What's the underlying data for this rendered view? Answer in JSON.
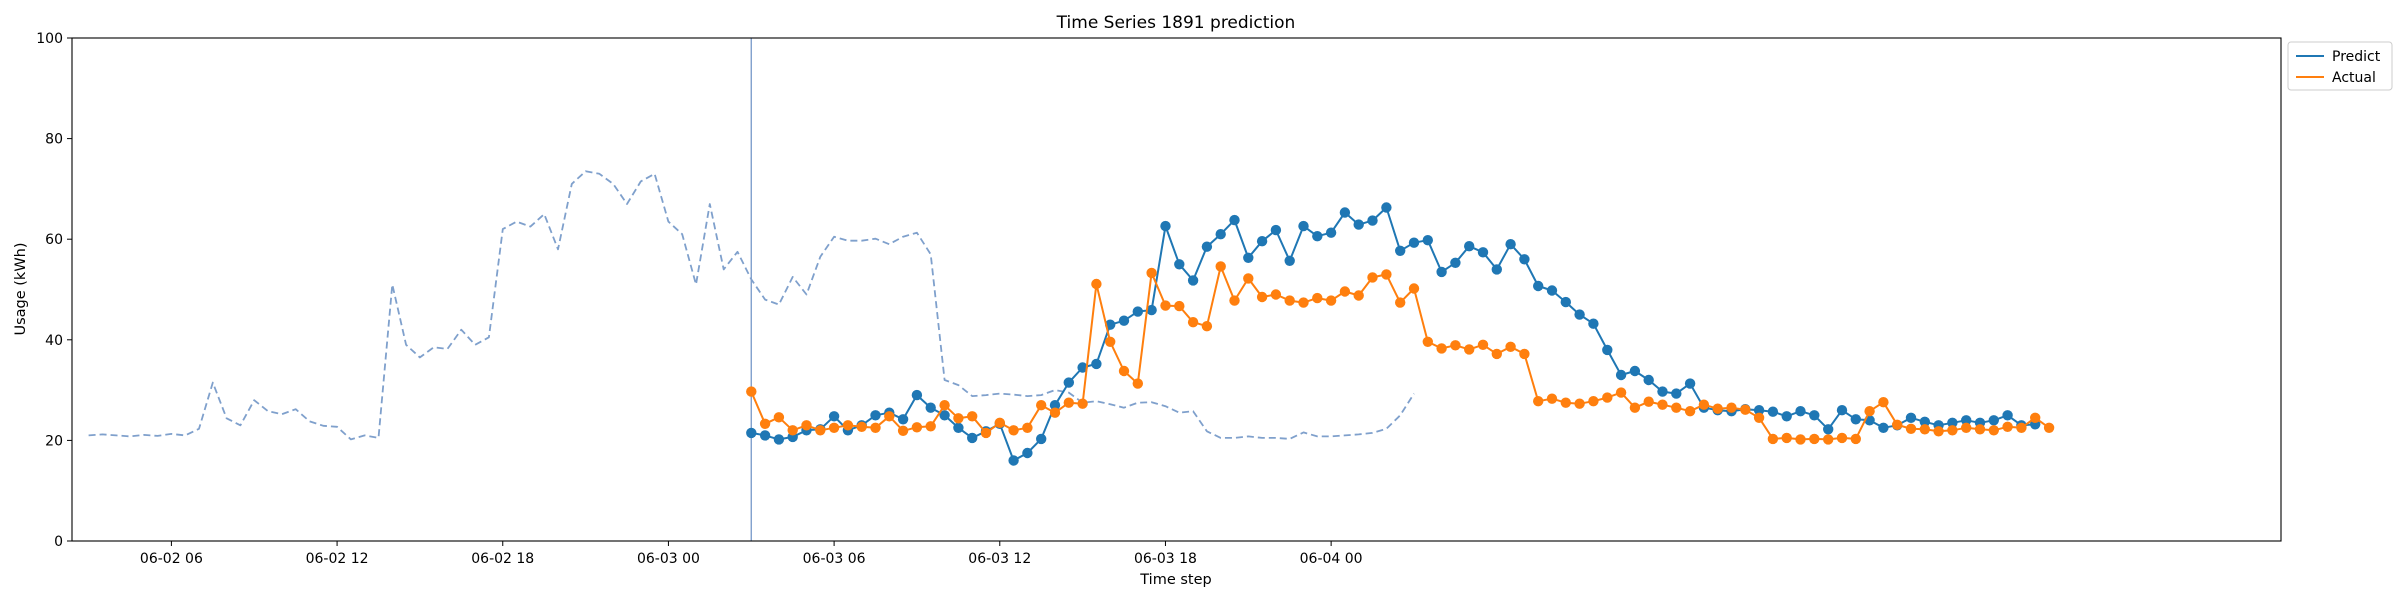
{
  "chart_data": {
    "type": "line",
    "title": "Time Series 1891 prediction",
    "xlabel": "Time step",
    "ylabel": "Usage (kWh)",
    "ylim": [
      0,
      100
    ],
    "yticks": [
      "0",
      "20",
      "40",
      "60",
      "80",
      "100"
    ],
    "xlim_hours": [
      -0.6,
      79.4
    ],
    "x_unit": "hours after 06-02 03:00",
    "xticks": [
      {
        "label": "06-02 06",
        "hour": 3
      },
      {
        "label": "06-02 12",
        "hour": 9
      },
      {
        "label": "06-02 18",
        "hour": 15
      },
      {
        "label": "06-03 00",
        "hour": 21
      },
      {
        "label": "06-03 06",
        "hour": 27
      },
      {
        "label": "06-03 12",
        "hour": 33
      },
      {
        "label": "06-03 18",
        "hour": 39
      },
      {
        "label": "06-04 00",
        "hour": 45
      }
    ],
    "split_hour": 24,
    "legend": {
      "position": "upper right outside"
    },
    "history": {
      "start_hour": 0,
      "step_hours": 0.5,
      "color": "#7fa0cc",
      "style": "dashed",
      "values": [
        21,
        21.2,
        21,
        20.8,
        21.1,
        20.9,
        21.3,
        21,
        22.3,
        31.5,
        24.4,
        23,
        28,
        25.8,
        25.2,
        26.2,
        23.8,
        22.9,
        22.7,
        20.2,
        21,
        20.5,
        51,
        39,
        36.5,
        38.5,
        38.2,
        42,
        39,
        40.5,
        62,
        63.5,
        62.5,
        65,
        58,
        71,
        73.5,
        73,
        71,
        67,
        71.5,
        73,
        63.5,
        61,
        51,
        67,
        54,
        57.5,
        52,
        48,
        47,
        52.5,
        49,
        56.5,
        60.5,
        59.7,
        59.7,
        60.1,
        59,
        60.5,
        61.3,
        57,
        32,
        31,
        28.8,
        29,
        29.3,
        29.1,
        28.8,
        29,
        30,
        29.5,
        27.5,
        27.8,
        27.2,
        26.5,
        27.5,
        27.6,
        26.8,
        25.5,
        25.8,
        21.8,
        20.5,
        20.5,
        20.8,
        20.5,
        20.5,
        20.3,
        21.6,
        20.8,
        20.8,
        21,
        21.2,
        21.5,
        22.3,
        25,
        29.3
      ]
    },
    "series": [
      {
        "name": "Predict",
        "color": "#1f77b4",
        "start_hour": 24,
        "step_hours": 0.5,
        "values": [
          21.5,
          21,
          20.2,
          20.7,
          22,
          22.2,
          24.8,
          22,
          23,
          25,
          25.5,
          24.2,
          29,
          26.5,
          25,
          22.5,
          20.5,
          21.8,
          23.3,
          16,
          17.5,
          20.3,
          27,
          31.5,
          34.5,
          35.2,
          43,
          43.8,
          45.6,
          45.9,
          62.6,
          55,
          51.8,
          58.5,
          61,
          63.8,
          56.3,
          59.6,
          61.8,
          55.7,
          62.6,
          60.6,
          61.3,
          65.3,
          62.9,
          63.7,
          66.3,
          57.7,
          59.3,
          59.8,
          53.5,
          55.3,
          58.6,
          57.4,
          54,
          59,
          56,
          50.7,
          49.8,
          47.5,
          45,
          43.2,
          38,
          33,
          33.8,
          32,
          29.7,
          29.3,
          31.3,
          26.5,
          26,
          25.8,
          26.2,
          26,
          25.7,
          24.8,
          25.8,
          25,
          22.2,
          26,
          24.2,
          24,
          22.5,
          23,
          24.5,
          23.7,
          23,
          23.5,
          24,
          23.5,
          24,
          25,
          23,
          23.2
        ]
      },
      {
        "name": "Actual",
        "color": "#ff7f0e",
        "start_hour": 24,
        "step_hours": 0.5,
        "values": [
          29.7,
          23.3,
          24.6,
          22,
          23,
          22,
          22.5,
          23,
          22.7,
          22.5,
          24.8,
          21.9,
          22.6,
          22.8,
          27,
          24.4,
          24.8,
          21.5,
          23.5,
          22,
          22.5,
          27,
          25.5,
          27.5,
          27.3,
          51.1,
          39.6,
          33.8,
          31.3,
          53.3,
          46.8,
          46.7,
          43.5,
          42.7,
          54.6,
          47.8,
          52.2,
          48.5,
          49,
          47.8,
          47.4,
          48.3,
          47.8,
          49.6,
          48.8,
          52.4,
          53,
          47.4,
          50.2,
          39.6,
          38.3,
          38.9,
          38.1,
          39,
          37.2,
          38.6,
          37.2,
          27.8,
          28.3,
          27.5,
          27.3,
          27.8,
          28.5,
          29.5,
          26.5,
          27.7,
          27.1,
          26.5,
          25.8,
          27.1,
          26.3,
          26.5,
          26.1,
          24.5,
          20.3,
          20.5,
          20.2,
          20.3,
          20.2,
          20.5,
          20.3,
          25.8,
          27.6,
          23.1,
          22.3,
          22.2,
          21.8,
          22,
          22.5,
          22.2,
          22,
          22.7,
          22.5,
          24.5,
          22.5
        ]
      }
    ]
  }
}
